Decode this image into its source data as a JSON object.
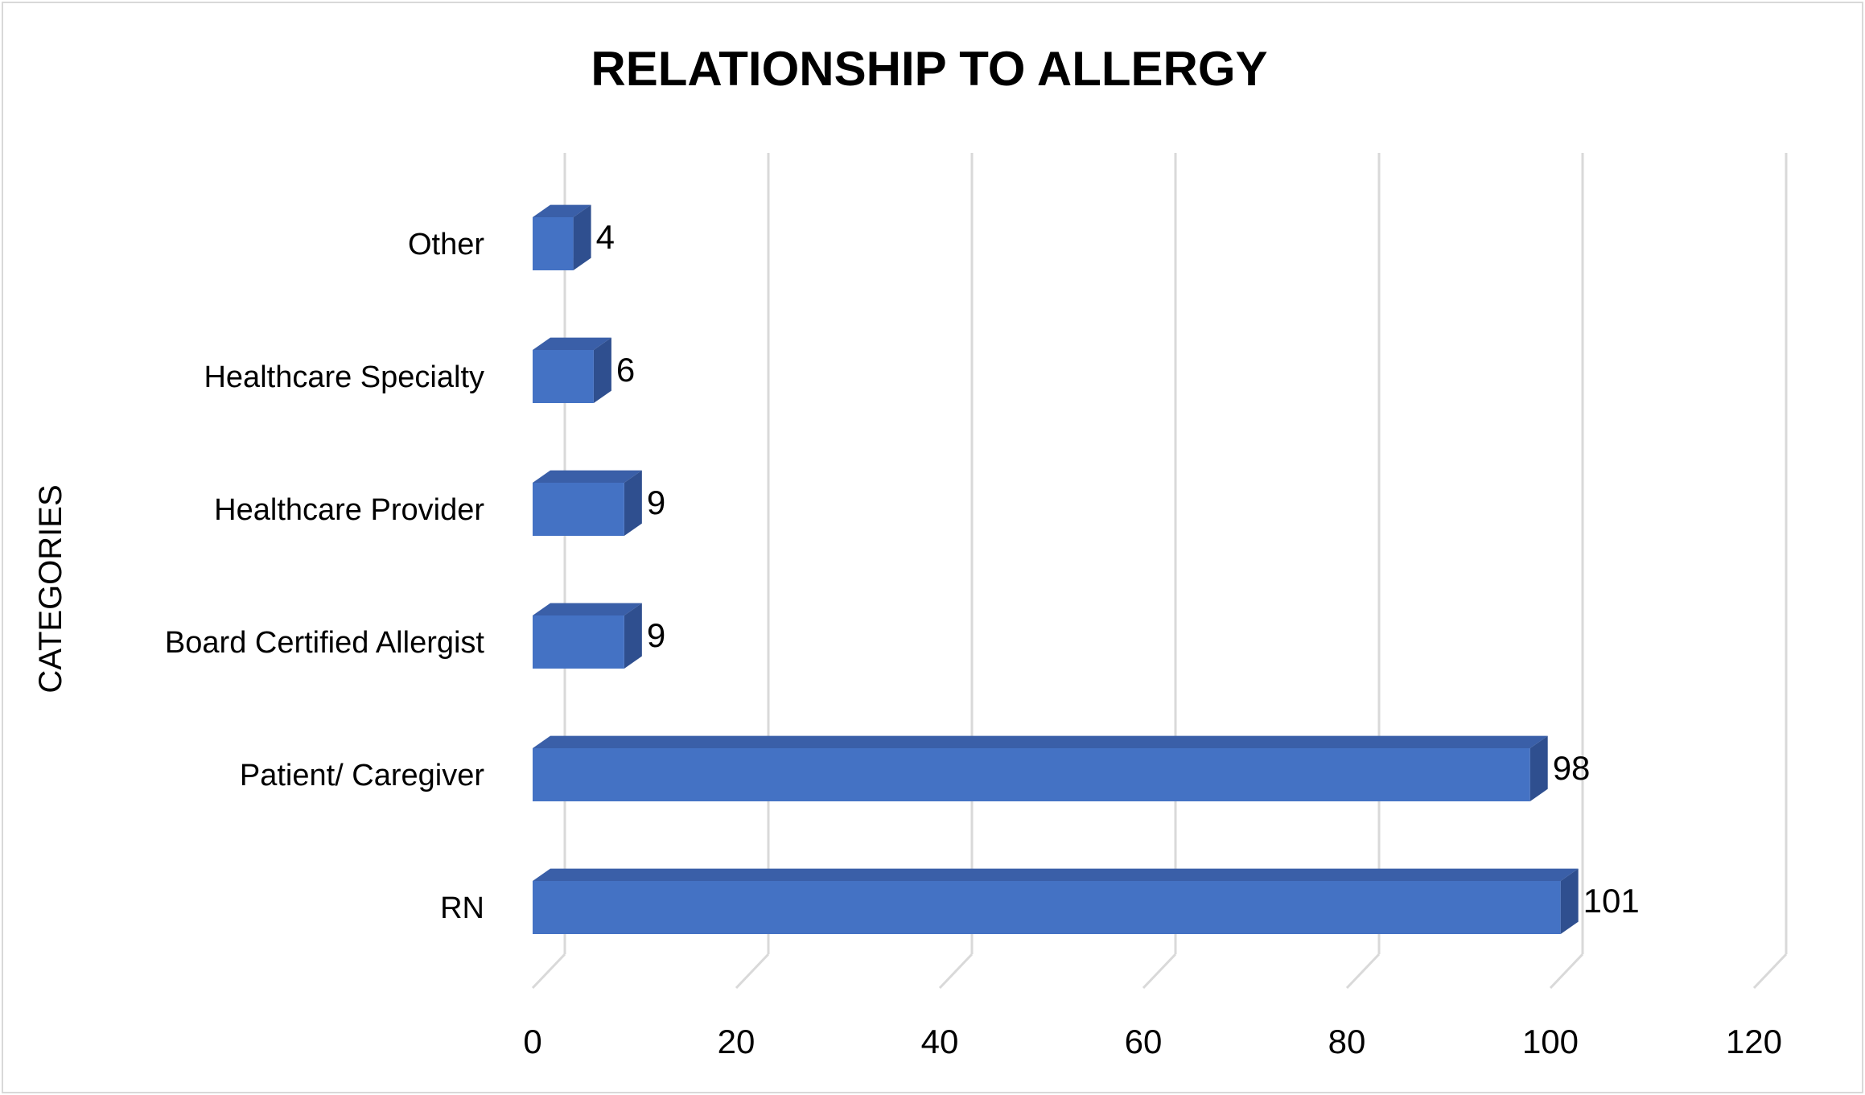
{
  "chart_data": {
    "type": "bar",
    "orientation": "horizontal",
    "title": "RELATIONSHIP TO ALLERGY",
    "xlabel": "",
    "ylabel": "CATEGORIES",
    "categories": [
      "RN",
      "Patient/ Caregiver",
      "Board Certified Allergist",
      "Healthcare Provider",
      "Healthcare Specialty",
      "Other"
    ],
    "values": [
      101,
      98,
      9,
      9,
      6,
      4
    ],
    "data_labels": [
      "101",
      "98",
      "9",
      "9",
      "6",
      "4"
    ],
    "xlim": [
      0,
      120
    ],
    "x_ticks": [
      0,
      20,
      40,
      60,
      80,
      100,
      120
    ],
    "x_tick_labels": [
      "0",
      "20",
      "40",
      "60",
      "80",
      "100",
      "120"
    ],
    "grid": true,
    "style": "3d",
    "legend": "none",
    "colors": {
      "bar_front": "#4472C4",
      "bar_top": "#3A5FA8",
      "bar_side": "#2F4F8F",
      "grid": "#d9d9d9",
      "border": "#d9d9d9"
    }
  }
}
